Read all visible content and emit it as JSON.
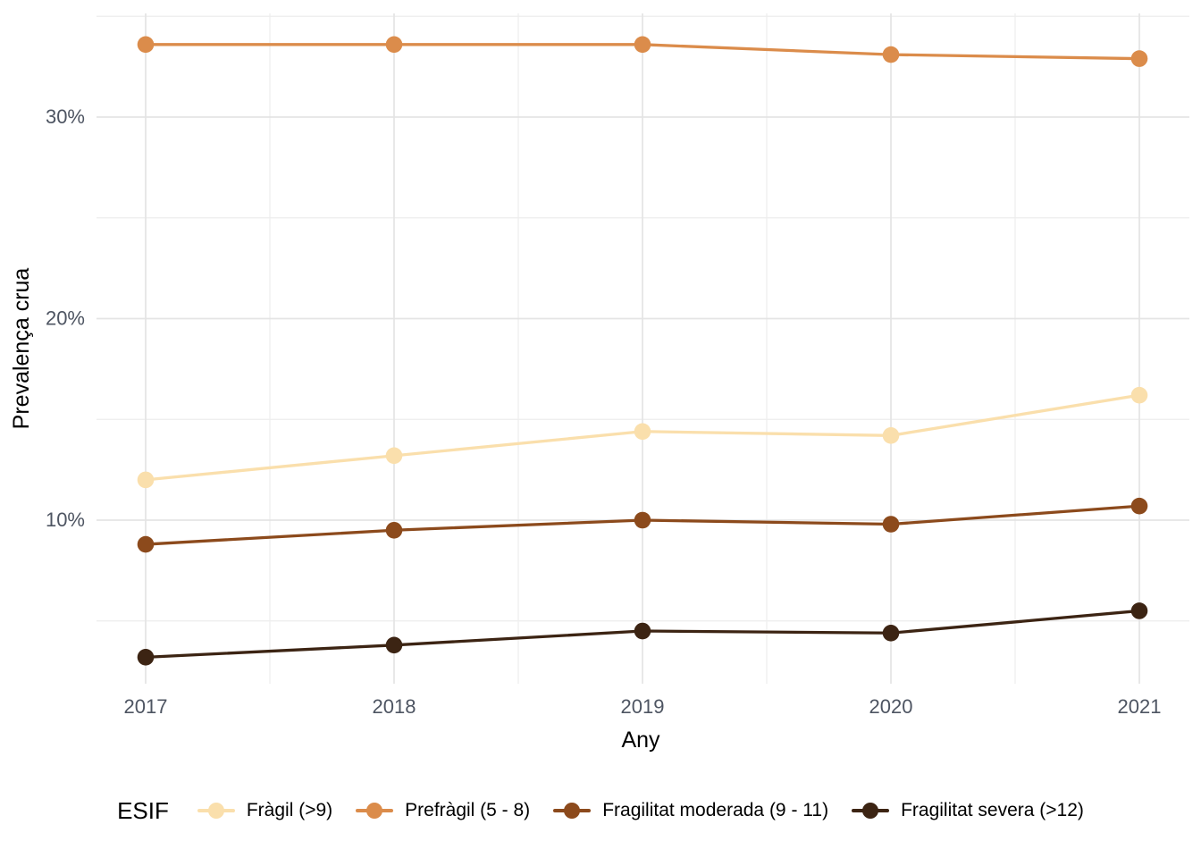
{
  "chart_data": {
    "type": "line",
    "title": "",
    "xlabel": "Any",
    "ylabel": "Prevalença crua",
    "legend_title": "ESIF",
    "legend_position": "bottom",
    "grid": "major+minor",
    "x": [
      2017,
      2018,
      2019,
      2020,
      2021
    ],
    "x_tick_labels": [
      "2017",
      "2018",
      "2019",
      "2020",
      "2021"
    ],
    "y_major_ticks": [
      10,
      20,
      30
    ],
    "y_tick_labels": [
      "10%",
      "20%",
      "30%"
    ],
    "y_minor_ticks": [
      5,
      15,
      25,
      35
    ],
    "ylim": [
      1.9,
      35.1
    ],
    "unit": "%",
    "series": [
      {
        "name": "Fràgil (>9)",
        "color": "#FADFAC",
        "values": [
          12.0,
          13.2,
          14.4,
          14.2,
          16.2
        ]
      },
      {
        "name": "Prefràgil (5 - 8)",
        "color": "#DB8C4B",
        "values": [
          33.6,
          33.6,
          33.6,
          33.1,
          32.9
        ]
      },
      {
        "name": "Fragilitat moderada (9 - 11)",
        "color": "#8C4A1C",
        "values": [
          8.8,
          9.5,
          10.0,
          9.8,
          10.7
        ]
      },
      {
        "name": "Fragilitat severa (>12)",
        "color": "#3C2413",
        "values": [
          3.2,
          3.8,
          4.5,
          4.4,
          5.5
        ]
      }
    ],
    "colors": {
      "grid_major": "#E4E4E4",
      "grid_minor": "#EDEDED",
      "tick_text": "#4E5562",
      "axis_title_text": "#000000",
      "background": "#FFFFFF"
    }
  }
}
